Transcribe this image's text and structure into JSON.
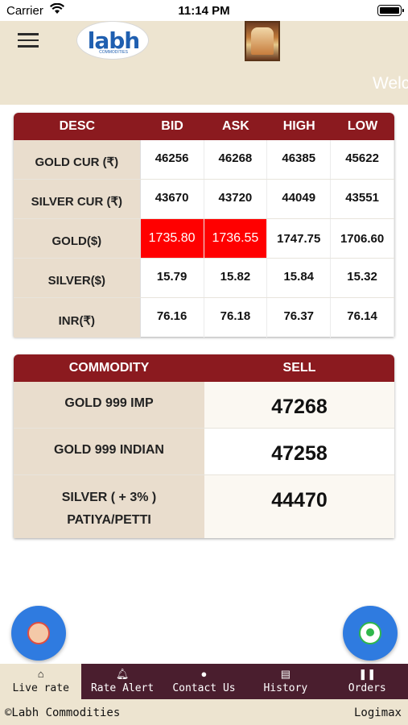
{
  "status_bar": {
    "carrier": "Carrier",
    "time": "11:14 PM"
  },
  "header": {
    "logo_text": "labh",
    "logo_sub": "COMMODITIES"
  },
  "marquee": {
    "text": "Welc"
  },
  "rates": {
    "headers": [
      "DESC",
      "BID",
      "ASK",
      "HIGH",
      "LOW"
    ],
    "rows": [
      {
        "desc": "GOLD CUR (₹)",
        "bid": "46256",
        "ask": "46268",
        "high": "46385",
        "low": "45622"
      },
      {
        "desc": "SILVER CUR (₹)",
        "bid": "43670",
        "ask": "43720",
        "high": "44049",
        "low": "43551"
      },
      {
        "desc": "GOLD($)",
        "bid": "1735.80",
        "ask": "1736.55",
        "high": "1747.75",
        "low": "1706.60"
      },
      {
        "desc": "SILVER($)",
        "bid": "15.79",
        "ask": "15.82",
        "high": "15.84",
        "low": "15.32"
      },
      {
        "desc": "INR(₹)",
        "bid": "76.16",
        "ask": "76.18",
        "high": "76.37",
        "low": "76.14"
      }
    ],
    "highlight_color": "#ff0000"
  },
  "commodities": {
    "headers": [
      "COMMODITY",
      "SELL"
    ],
    "rows": [
      {
        "name_line1": "GOLD 999 IMP",
        "name_line2": "",
        "sell": "47268"
      },
      {
        "name_line1": "GOLD 999 INDIAN",
        "name_line2": "",
        "sell": "47258"
      },
      {
        "name_line1": "SILVER ( + 3% )",
        "name_line2": "PATIYA/PETTI",
        "sell": "44470"
      }
    ]
  },
  "fabs": {
    "left_icon": "support-icon",
    "right_icon": "whatsapp-icon"
  },
  "bottom_nav": [
    {
      "label": "Live rate",
      "icon": "home-icon",
      "active": true
    },
    {
      "label": "Rate Alert",
      "icon": "bell-icon",
      "active": false
    },
    {
      "label": "Contact Us",
      "icon": "location-icon",
      "active": false
    },
    {
      "label": "History",
      "icon": "list-icon",
      "active": false
    },
    {
      "label": "Orders",
      "icon": "orders-icon",
      "active": false
    }
  ],
  "footer": {
    "left": "©Labh Commodities",
    "right": "Logimax"
  },
  "colors": {
    "header_bg": "#ede4d0",
    "table_header": "#8b1a1f",
    "nav_bg": "#4a1e2e",
    "fab": "#2f7be0"
  }
}
